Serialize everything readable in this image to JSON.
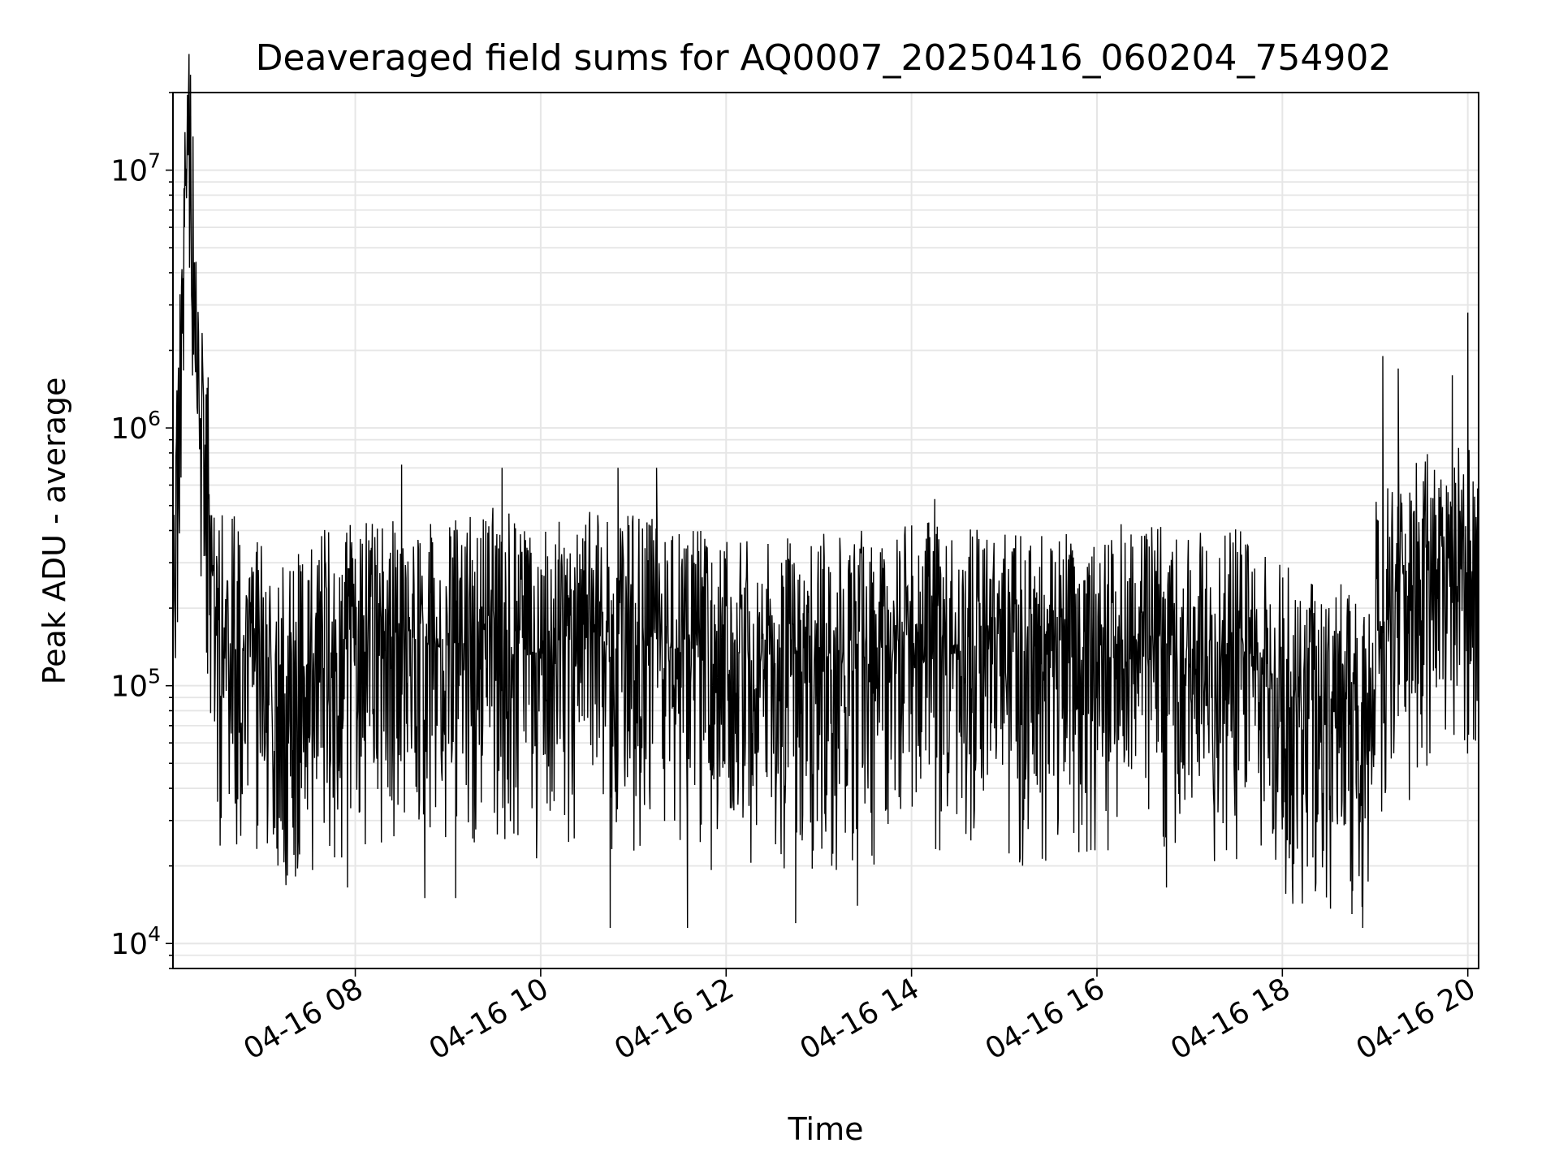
{
  "chart_data": {
    "type": "line",
    "title": "Deaveraged field sums for AQ0007_20250416_060204_754902",
    "xlabel": "Time",
    "ylabel": "Peak ADU - average",
    "yscale": "log",
    "grid": true,
    "xlim": [
      "04-16 06:02",
      "04-16 20:07"
    ],
    "ylim": [
      8000,
      20000000
    ],
    "x_ticks": [
      "04-16 08",
      "04-16 10",
      "04-16 12",
      "04-16 14",
      "04-16 16",
      "04-16 18",
      "04-16 20"
    ],
    "y_ticks": [
      {
        "base": "10",
        "exp": "4",
        "value": 10000
      },
      {
        "base": "10",
        "exp": "5",
        "value": 100000
      },
      {
        "base": "10",
        "exp": "6",
        "value": 1000000
      },
      {
        "base": "10",
        "exp": "7",
        "value": 10000000
      }
    ],
    "line_color": "#000000",
    "grid_color": "#e6e6e6",
    "series": [
      {
        "values": [
          {
            "x": "04-16 06:02",
            "y": 190000
          },
          {
            "x": "04-16 06:12",
            "y": 14000000
          },
          {
            "x": "04-16 06:30",
            "y": 190000
          },
          {
            "x": "04-16 07:00",
            "y": 170000
          },
          {
            "x": "04-16 07:15",
            "y": 120000
          },
          {
            "x": "04-16 07:30",
            "y": 150000
          },
          {
            "x": "04-16 08:00",
            "y": 170000
          },
          {
            "x": "04-16 08:30",
            "y": 180000
          },
          {
            "x": "04-16 09:00",
            "y": 175000
          },
          {
            "x": "04-16 09:30",
            "y": 190000
          },
          {
            "x": "04-16 10:00",
            "y": 165000
          },
          {
            "x": "04-16 10:30",
            "y": 185000
          },
          {
            "x": "04-16 11:00",
            "y": 180000
          },
          {
            "x": "04-16 11:30",
            "y": 160000
          },
          {
            "x": "04-16 12:00",
            "y": 150000
          },
          {
            "x": "04-16 12:30",
            "y": 145000
          },
          {
            "x": "04-16 13:00",
            "y": 150000
          },
          {
            "x": "04-16 13:30",
            "y": 155000
          },
          {
            "x": "04-16 14:00",
            "y": 165000
          },
          {
            "x": "04-16 14:30",
            "y": 170000
          },
          {
            "x": "04-16 15:00",
            "y": 150000
          },
          {
            "x": "04-16 15:30",
            "y": 155000
          },
          {
            "x": "04-16 16:00",
            "y": 160000
          },
          {
            "x": "04-16 16:30",
            "y": 170000
          },
          {
            "x": "04-16 17:00",
            "y": 150000
          },
          {
            "x": "04-16 17:30",
            "y": 165000
          },
          {
            "x": "04-16 18:00",
            "y": 115000
          },
          {
            "x": "04-16 18:30",
            "y": 100000
          },
          {
            "x": "04-16 18:55",
            "y": 90000
          },
          {
            "x": "04-16 19:00",
            "y": 200000
          },
          {
            "x": "04-16 19:30",
            "y": 320000
          },
          {
            "x": "04-16 20:00",
            "y": 330000
          },
          {
            "x": "04-16 20:07",
            "y": 300000
          }
        ],
        "peaks": [
          {
            "x": "04-16 06:12",
            "y": 14000000
          },
          {
            "x": "04-16 08:30",
            "y": 720000
          },
          {
            "x": "04-16 09:35",
            "y": 700000
          },
          {
            "x": "04-16 10:50",
            "y": 700000
          },
          {
            "x": "04-16 11:15",
            "y": 700000
          },
          {
            "x": "04-16 14:15",
            "y": 530000
          },
          {
            "x": "04-16 19:05",
            "y": 1900000
          },
          {
            "x": "04-16 19:15",
            "y": 1700000
          },
          {
            "x": "04-16 19:50",
            "y": 1600000
          },
          {
            "x": "04-16 20:00",
            "y": 2800000
          }
        ],
        "troughs": [
          {
            "x": "04-16 07:55",
            "y": 16500
          },
          {
            "x": "04-16 08:45",
            "y": 15000
          },
          {
            "x": "04-16 09:05",
            "y": 15000
          },
          {
            "x": "04-16 10:45",
            "y": 11500
          },
          {
            "x": "04-16 11:35",
            "y": 11500
          },
          {
            "x": "04-16 12:45",
            "y": 12000
          },
          {
            "x": "04-16 13:25",
            "y": 14000
          },
          {
            "x": "04-16 16:45",
            "y": 16500
          },
          {
            "x": "04-16 18:45",
            "y": 13000
          },
          {
            "x": "04-16 18:52",
            "y": 11500
          }
        ]
      }
    ]
  }
}
